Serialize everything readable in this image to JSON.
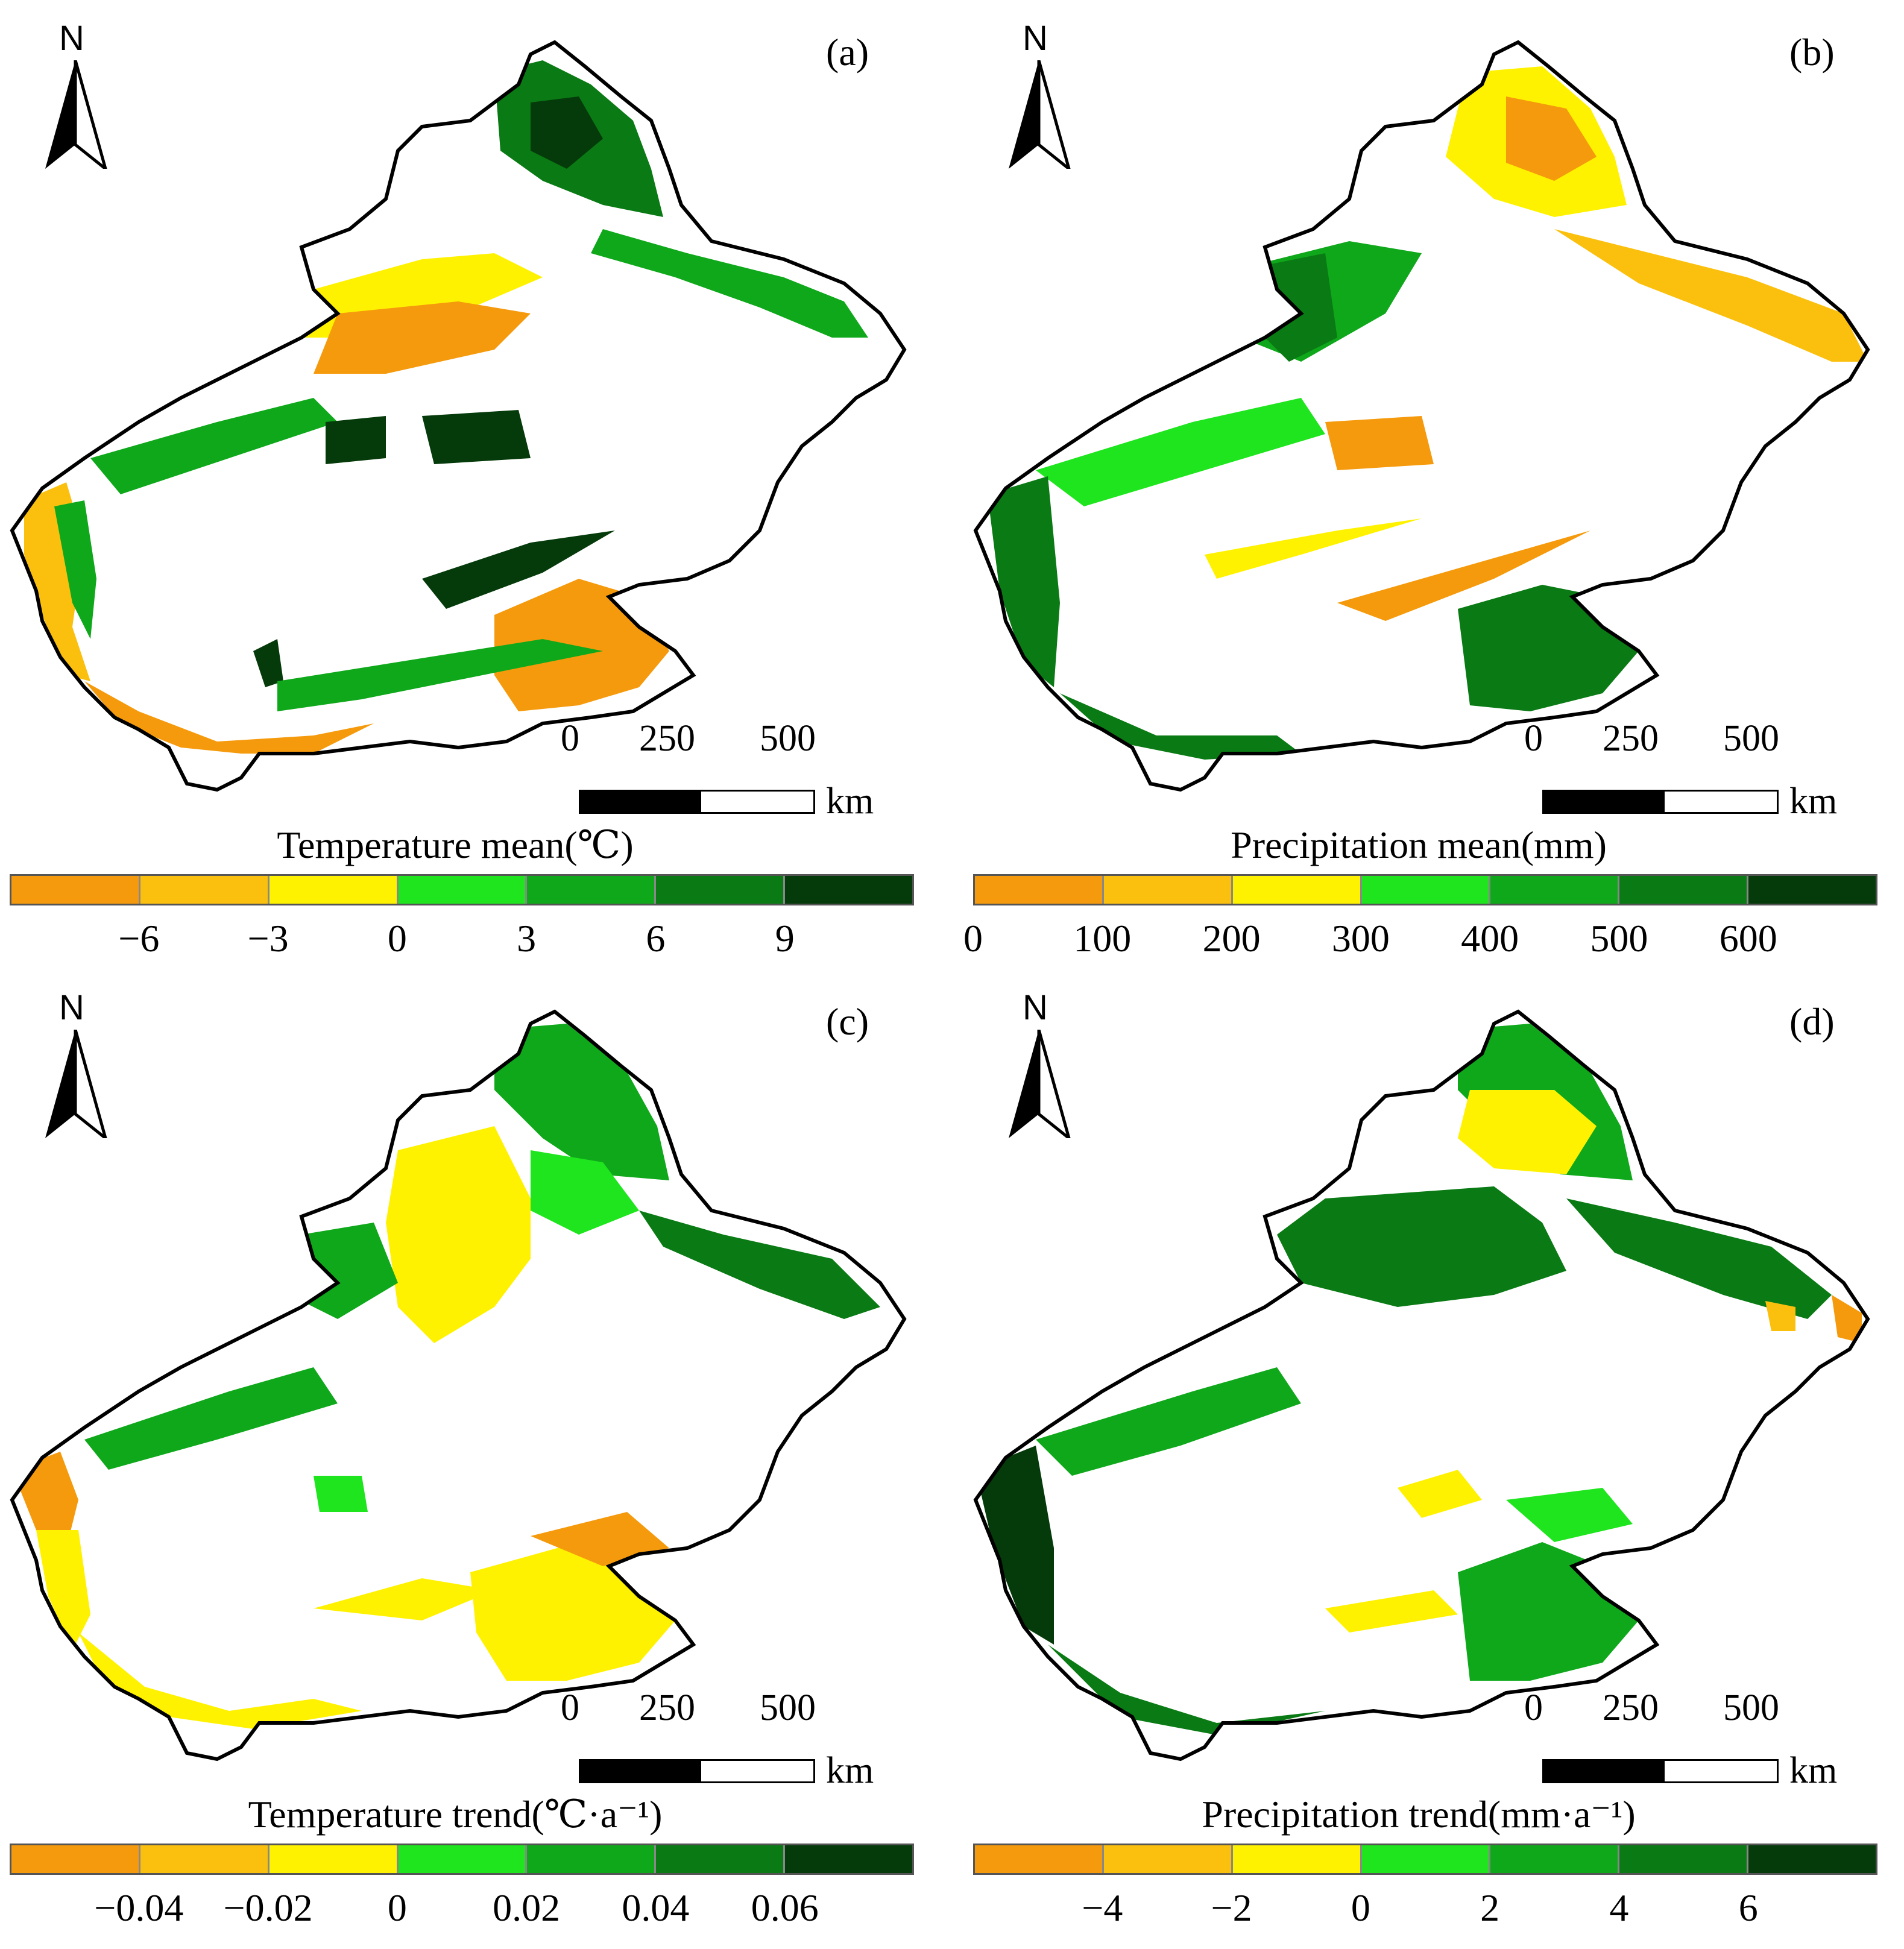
{
  "colors": {
    "c1": "#F59A0C",
    "c2": "#FBC00E",
    "c3": "#FFF200",
    "c4": "#1EE51E",
    "c5": "#0FA81B",
    "c6": "#0A7A14",
    "c7": "#053A0A",
    "outline": "#000000"
  },
  "north_label": "N",
  "scale": {
    "ticks": [
      "0",
      "250",
      "500"
    ],
    "unit": "km"
  },
  "panels": [
    {
      "letter": "(a)",
      "legend_title": "Temperature mean(℃)",
      "legend_ticks": [
        "−6",
        "−3",
        "0",
        "3",
        "6",
        "9"
      ]
    },
    {
      "letter": "(b)",
      "legend_title": "Precipitation mean(mm)",
      "legend_ticks": [
        "0",
        "100",
        "200",
        "300",
        "400",
        "500",
        "600"
      ]
    },
    {
      "letter": "(c)",
      "legend_title": "Temperature trend(℃·a⁻¹)",
      "legend_ticks": [
        "−0.04",
        "−0.02",
        "0",
        "0.02",
        "0.04",
        "0.06"
      ]
    },
    {
      "letter": "(d)",
      "legend_title": "Precipitation trend(mm·a⁻¹)",
      "legend_ticks": [
        "−4",
        "−2",
        "0",
        "2",
        "4",
        "6"
      ]
    }
  ]
}
